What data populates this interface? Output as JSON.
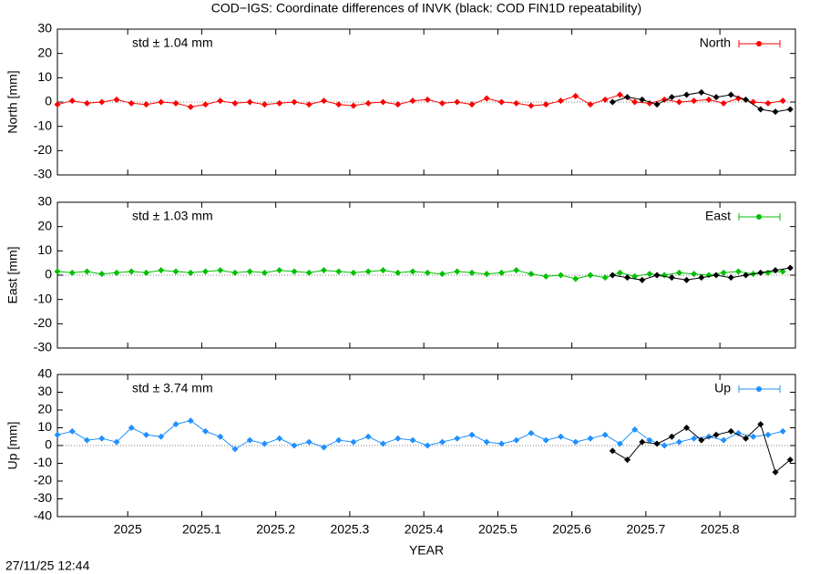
{
  "title": "COD−IGS: Coordinate differences of INVK (black: COD FIN1D repeatability)",
  "timestamp": "27/11/25 12:44",
  "chart_data": [
    {
      "type": "line",
      "ylabel": "North [mm]",
      "annotation": "std ± 1.04 mm",
      "xlim": [
        2024.905,
        2025.902
      ],
      "xticks": [
        2025,
        2025.1,
        2025.2,
        2025.3,
        2025.4,
        2025.5,
        2025.6,
        2025.7,
        2025.8
      ],
      "ylim": [
        -30,
        30
      ],
      "yticks": [
        -30,
        -20,
        -10,
        0,
        10,
        20,
        30
      ],
      "series": [
        {
          "name": "North",
          "color": "#ff0000",
          "x": [
            2024.905,
            2024.925,
            2024.945,
            2024.965,
            2024.985,
            2025.005,
            2025.025,
            2025.045,
            2025.065,
            2025.085,
            2025.105,
            2025.125,
            2025.145,
            2025.165,
            2025.185,
            2025.205,
            2025.225,
            2025.245,
            2025.265,
            2025.285,
            2025.305,
            2025.325,
            2025.345,
            2025.365,
            2025.385,
            2025.405,
            2025.425,
            2025.445,
            2025.465,
            2025.485,
            2025.505,
            2025.525,
            2025.545,
            2025.565,
            2025.585,
            2025.605,
            2025.625,
            2025.645,
            2025.665,
            2025.685,
            2025.705,
            2025.725,
            2025.745,
            2025.765,
            2025.785,
            2025.805,
            2025.825,
            2025.845,
            2025.865,
            2025.885
          ],
          "values": [
            -1,
            0.5,
            -0.5,
            0,
            1,
            -0.5,
            -1,
            0,
            -0.5,
            -2,
            -1,
            0.5,
            -0.5,
            0,
            -1,
            -0.5,
            0,
            -1,
            0.5,
            -1,
            -1.5,
            -0.5,
            0,
            -1,
            0.5,
            1,
            -0.5,
            0,
            -1,
            1.5,
            0,
            -0.5,
            -1.5,
            -1,
            0.5,
            2.5,
            -1,
            1,
            3,
            0,
            -0.5,
            1,
            0,
            0.5,
            1,
            -0.5,
            1.5,
            0,
            -0.5,
            0.5
          ]
        },
        {
          "color": "#000000",
          "x": [
            2025.655,
            2025.675,
            2025.695,
            2025.715,
            2025.735,
            2025.755,
            2025.775,
            2025.795,
            2025.815,
            2025.835,
            2025.855,
            2025.875,
            2025.895
          ],
          "values": [
            0,
            2,
            1,
            -1,
            2,
            3,
            4,
            2,
            3,
            1,
            -3,
            -4,
            -3
          ]
        }
      ]
    },
    {
      "type": "line",
      "ylabel": "East [mm]",
      "annotation": "std ± 1.03 mm",
      "xlim": [
        2024.905,
        2025.902
      ],
      "xticks": [
        2025,
        2025.1,
        2025.2,
        2025.3,
        2025.4,
        2025.5,
        2025.6,
        2025.7,
        2025.8
      ],
      "ylim": [
        -30,
        30
      ],
      "yticks": [
        -30,
        -20,
        -10,
        0,
        10,
        20,
        30
      ],
      "series": [
        {
          "name": "East",
          "color": "#00c000",
          "x": [
            2024.905,
            2024.925,
            2024.945,
            2024.965,
            2024.985,
            2025.005,
            2025.025,
            2025.045,
            2025.065,
            2025.085,
            2025.105,
            2025.125,
            2025.145,
            2025.165,
            2025.185,
            2025.205,
            2025.225,
            2025.245,
            2025.265,
            2025.285,
            2025.305,
            2025.325,
            2025.345,
            2025.365,
            2025.385,
            2025.405,
            2025.425,
            2025.445,
            2025.465,
            2025.485,
            2025.505,
            2025.525,
            2025.545,
            2025.565,
            2025.585,
            2025.605,
            2025.625,
            2025.645,
            2025.665,
            2025.685,
            2025.705,
            2025.725,
            2025.745,
            2025.765,
            2025.785,
            2025.805,
            2025.825,
            2025.845,
            2025.865,
            2025.885
          ],
          "values": [
            1.5,
            1,
            1.5,
            0.5,
            1,
            1.5,
            1,
            2,
            1.5,
            1,
            1.5,
            2,
            1,
            1.5,
            1,
            2,
            1.5,
            1,
            2,
            1.5,
            1,
            1.5,
            2,
            1,
            1.5,
            1,
            0.5,
            1.5,
            1,
            0.5,
            1,
            2,
            0.5,
            -0.5,
            0,
            -1.5,
            0,
            -1,
            1,
            -0.5,
            0.5,
            0,
            1,
            0.5,
            0,
            1,
            1.5,
            0.5,
            1,
            1.5
          ]
        },
        {
          "color": "#000000",
          "x": [
            2025.655,
            2025.675,
            2025.695,
            2025.715,
            2025.735,
            2025.755,
            2025.775,
            2025.795,
            2025.815,
            2025.835,
            2025.855,
            2025.875,
            2025.895
          ],
          "values": [
            0,
            -1,
            -2,
            0,
            -1,
            -2,
            -1,
            0,
            -1,
            0,
            1,
            2,
            3
          ]
        }
      ]
    },
    {
      "type": "line",
      "ylabel": "Up [mm]",
      "annotation": "std ± 3.74 mm",
      "xlabel": "YEAR",
      "xlim": [
        2024.905,
        2025.902
      ],
      "xticks": [
        2025,
        2025.1,
        2025.2,
        2025.3,
        2025.4,
        2025.5,
        2025.6,
        2025.7,
        2025.8
      ],
      "ylim": [
        -40,
        40
      ],
      "yticks": [
        -40,
        -30,
        -20,
        -10,
        0,
        10,
        20,
        30,
        40
      ],
      "series": [
        {
          "name": "Up",
          "color": "#1e90ff",
          "x": [
            2024.905,
            2024.925,
            2024.945,
            2024.965,
            2024.985,
            2025.005,
            2025.025,
            2025.045,
            2025.065,
            2025.085,
            2025.105,
            2025.125,
            2025.145,
            2025.165,
            2025.185,
            2025.205,
            2025.225,
            2025.245,
            2025.265,
            2025.285,
            2025.305,
            2025.325,
            2025.345,
            2025.365,
            2025.385,
            2025.405,
            2025.425,
            2025.445,
            2025.465,
            2025.485,
            2025.505,
            2025.525,
            2025.545,
            2025.565,
            2025.585,
            2025.605,
            2025.625,
            2025.645,
            2025.665,
            2025.685,
            2025.705,
            2025.725,
            2025.745,
            2025.765,
            2025.785,
            2025.805,
            2025.825,
            2025.845,
            2025.865,
            2025.885
          ],
          "values": [
            6,
            8,
            3,
            4,
            2,
            10,
            6,
            5,
            12,
            14,
            8,
            5,
            -2,
            3,
            1,
            4,
            0,
            2,
            -1,
            3,
            2,
            5,
            1,
            4,
            3,
            0,
            2,
            4,
            6,
            2,
            1,
            3,
            7,
            3,
            5,
            2,
            4,
            6,
            1,
            9,
            3,
            0,
            2,
            4,
            5,
            3,
            7,
            5,
            6,
            8
          ]
        },
        {
          "color": "#000000",
          "x": [
            2025.655,
            2025.675,
            2025.695,
            2025.715,
            2025.735,
            2025.755,
            2025.775,
            2025.795,
            2025.815,
            2025.835,
            2025.855,
            2025.875,
            2025.895
          ],
          "values": [
            -3,
            -8,
            2,
            1,
            5,
            10,
            3,
            6,
            8,
            4,
            12,
            -15,
            -8
          ]
        }
      ]
    }
  ]
}
